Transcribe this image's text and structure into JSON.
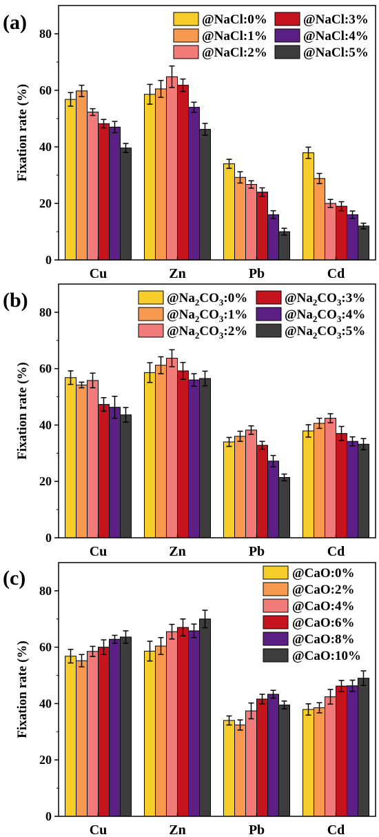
{
  "chart_data": [
    {
      "panel_label": "(a)",
      "type": "bar",
      "ylabel": "Fixation rate (%)",
      "ylim": [
        0,
        90
      ],
      "yticks": [
        0,
        20,
        40,
        60,
        80
      ],
      "categories": [
        "Cu",
        "Zn",
        "Pb",
        "Cd"
      ],
      "legend_columns": 2,
      "legend_placement": "top-right",
      "series": [
        {
          "name": "@NaCl:0%",
          "color": "#f7cd2a",
          "values": [
            56.8,
            58.6,
            34.0,
            37.9
          ],
          "errors": [
            2.4,
            3.5,
            1.6,
            2.0
          ]
        },
        {
          "name": "@NaCl:1%",
          "color": "#f79a4f",
          "values": [
            59.8,
            60.5,
            29.2,
            28.8
          ],
          "errors": [
            2.0,
            3.0,
            2.0,
            1.8
          ]
        },
        {
          "name": "@NaCl:2%",
          "color": "#f17b79",
          "values": [
            52.3,
            64.8,
            26.7,
            20.0
          ],
          "errors": [
            1.2,
            3.8,
            1.3,
            1.4
          ]
        },
        {
          "name": "@NaCl:3%",
          "color": "#c5141d",
          "values": [
            48.2,
            61.8,
            24.0,
            19.0
          ],
          "errors": [
            1.5,
            2.2,
            1.5,
            1.6
          ]
        },
        {
          "name": "@NaCl:4%",
          "color": "#5b1f86",
          "values": [
            47.0,
            54.0,
            16.0,
            16.0
          ],
          "errors": [
            2.0,
            1.8,
            1.4,
            1.3
          ]
        },
        {
          "name": "@NaCl:5%",
          "color": "#3d3d3d",
          "values": [
            39.6,
            46.2,
            10.0,
            12.0
          ],
          "errors": [
            1.6,
            2.1,
            1.2,
            1.0
          ]
        }
      ]
    },
    {
      "panel_label": "(b)",
      "type": "bar",
      "ylabel": "Fixation rate (%)",
      "ylim": [
        0,
        90
      ],
      "yticks": [
        0,
        20,
        40,
        60,
        80
      ],
      "categories": [
        "Cu",
        "Zn",
        "Pb",
        "Cd"
      ],
      "legend_columns": 2,
      "legend_placement": "top-right",
      "series": [
        {
          "name": "@Na2CO3:0%",
          "legend": {
            "prefix": "@Na",
            "sub": "2",
            "suffix": "CO",
            "sub2": "3",
            "tail": ":0%"
          },
          "color": "#f7cd2a",
          "values": [
            56.8,
            58.6,
            34.0,
            37.9
          ],
          "errors": [
            2.4,
            3.5,
            1.6,
            2.2
          ]
        },
        {
          "name": "@Na2CO3:1%",
          "legend": {
            "prefix": "@Na",
            "sub": "2",
            "suffix": "CO",
            "sub2": "3",
            "tail": ":1%"
          },
          "color": "#f79a4f",
          "values": [
            54.2,
            61.2,
            36.0,
            40.6
          ],
          "errors": [
            1.0,
            3.0,
            1.8,
            1.8
          ]
        },
        {
          "name": "@Na2CO3:2%",
          "legend": {
            "prefix": "@Na",
            "sub": "2",
            "suffix": "CO",
            "sub2": "3",
            "tail": ":2%"
          },
          "color": "#f17b79",
          "values": [
            55.8,
            63.7,
            38.2,
            42.4
          ],
          "errors": [
            2.6,
            3.0,
            1.5,
            1.6
          ]
        },
        {
          "name": "@Na2CO3:3%",
          "legend": {
            "prefix": "@Na",
            "sub": "2",
            "suffix": "CO",
            "sub2": "3",
            "tail": ":3%"
          },
          "color": "#c5141d",
          "values": [
            47.3,
            59.2,
            32.8,
            37.0
          ],
          "errors": [
            2.4,
            3.0,
            1.4,
            2.5
          ]
        },
        {
          "name": "@Na2CO3:4%",
          "legend": {
            "prefix": "@Na",
            "sub": "2",
            "suffix": "CO",
            "sub2": "3",
            "tail": ":4%"
          },
          "color": "#5b1f86",
          "values": [
            46.3,
            56.0,
            27.2,
            34.2
          ],
          "errors": [
            3.9,
            2.2,
            2.0,
            1.6
          ]
        },
        {
          "name": "@Na2CO3:5%",
          "legend": {
            "prefix": "@Na",
            "sub": "2",
            "suffix": "CO",
            "sub2": "3",
            "tail": ":5%"
          },
          "color": "#3d3d3d",
          "values": [
            43.6,
            56.5,
            21.4,
            33.2
          ],
          "errors": [
            2.6,
            2.6,
            1.2,
            2.0
          ]
        }
      ]
    },
    {
      "panel_label": "(c)",
      "type": "bar",
      "ylabel": "Fixation rate (%)",
      "ylim": [
        0,
        90
      ],
      "yticks": [
        0,
        20,
        40,
        60,
        80
      ],
      "categories": [
        "Cu",
        "Zn",
        "Pb",
        "Cd"
      ],
      "legend_columns": 1,
      "legend_placement": "top-right",
      "series": [
        {
          "name": "@CaO:0%",
          "color": "#f7cd2a",
          "values": [
            56.8,
            58.6,
            34.0,
            37.9
          ],
          "errors": [
            2.4,
            3.5,
            1.6,
            2.0
          ]
        },
        {
          "name": "@CaO:2%",
          "color": "#f79a4f",
          "values": [
            55.2,
            60.4,
            32.4,
            38.5
          ],
          "errors": [
            2.2,
            3.0,
            1.8,
            1.8
          ]
        },
        {
          "name": "@CaO:4%",
          "color": "#f17b79",
          "values": [
            58.5,
            65.5,
            37.4,
            42.4
          ],
          "errors": [
            1.8,
            2.6,
            2.8,
            2.6
          ]
        },
        {
          "name": "@CaO:6%",
          "color": "#c5141d",
          "values": [
            60.0,
            67.0,
            41.6,
            46.2
          ],
          "errors": [
            2.6,
            3.0,
            1.7,
            2.0
          ]
        },
        {
          "name": "@CaO:8%",
          "color": "#5b1f86",
          "values": [
            62.8,
            65.8,
            43.3,
            46.3
          ],
          "errors": [
            1.4,
            2.4,
            1.4,
            2.0
          ]
        },
        {
          "name": "@CaO:10%",
          "color": "#3d3d3d",
          "values": [
            63.6,
            70.0,
            39.5,
            49.0
          ],
          "errors": [
            2.2,
            3.1,
            1.4,
            2.6
          ]
        }
      ]
    }
  ]
}
